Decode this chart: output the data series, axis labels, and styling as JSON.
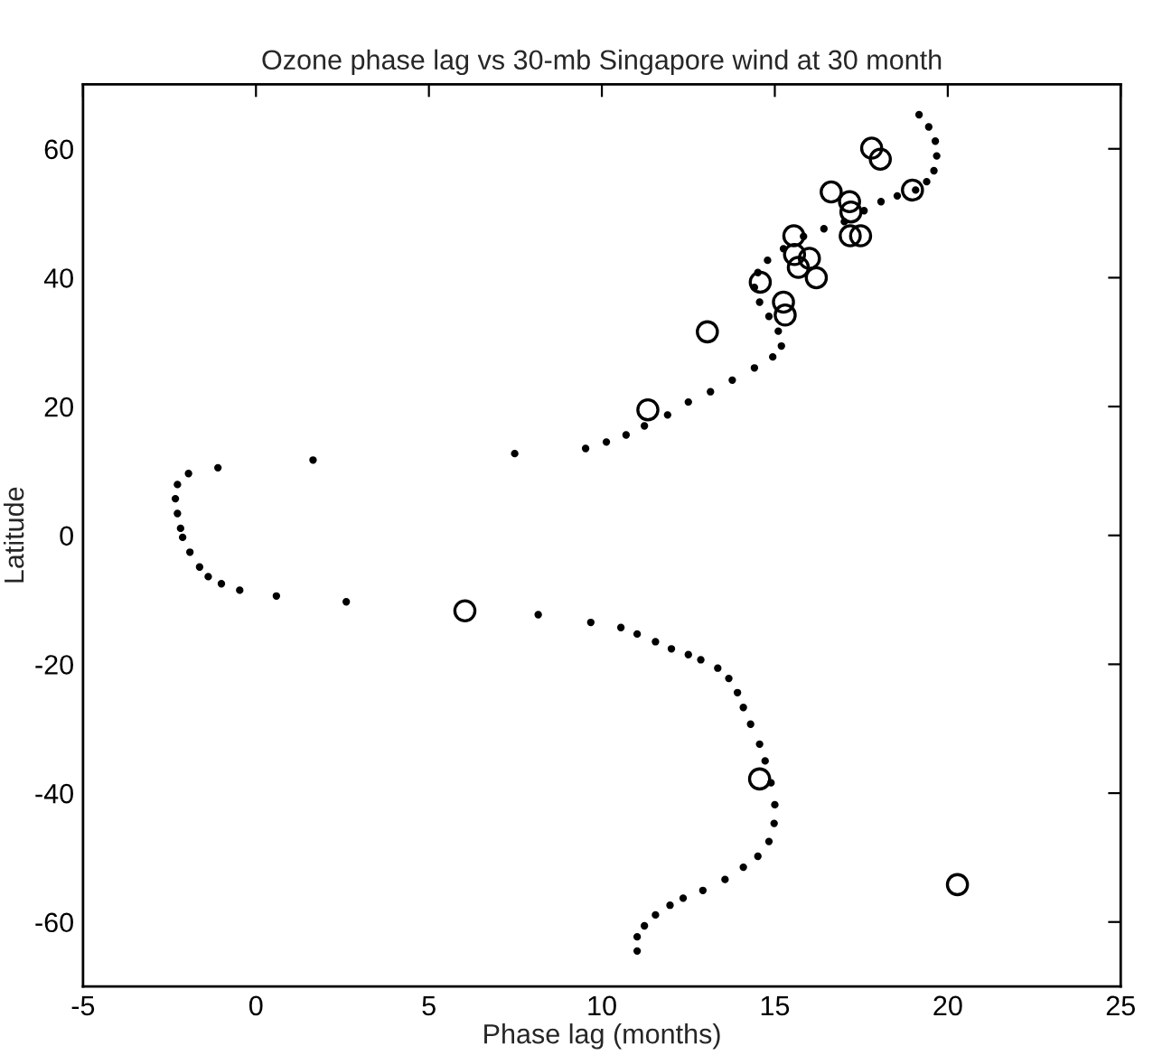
{
  "chart_data": {
    "type": "scatter",
    "title": "Ozone phase lag vs 30-mb Singapore wind at 30 month",
    "xlabel": "Phase lag (months)",
    "ylabel": "Latitude",
    "xlim": [
      -5,
      25
    ],
    "xticks": [
      -5,
      0,
      5,
      10,
      15,
      20,
      25
    ],
    "ylim": [
      -70,
      70
    ],
    "yticks": [
      -60,
      -40,
      -20,
      0,
      20,
      40,
      60
    ],
    "grid": false,
    "legend": false,
    "series": [
      {
        "color": "#000000",
        "marker": "point",
        "x": [
          19.17,
          19.45,
          19.64,
          19.68,
          19.6,
          19.39,
          19.07,
          18.54,
          18.07,
          17.58,
          17.01,
          16.42,
          15.83,
          15.25,
          14.79,
          14.51,
          14.41,
          14.56,
          14.83,
          15.1,
          15.19,
          14.94,
          14.41,
          13.77,
          13.14,
          12.5,
          11.9,
          11.23,
          10.7,
          10.13,
          9.53,
          7.48,
          1.65,
          -1.1,
          -1.95,
          -2.27,
          -2.33,
          -2.27,
          -2.18,
          -2.12,
          -1.91,
          -1.63,
          -1.38,
          -1.0,
          -0.47,
          0.59,
          2.61,
          8.16,
          9.68,
          10.55,
          11.02,
          11.55,
          12.01,
          12.5,
          12.86,
          13.35,
          13.67,
          13.92,
          14.09,
          14.3,
          14.56,
          14.72,
          14.89,
          15.0,
          14.98,
          14.83,
          14.51,
          14.09,
          13.56,
          12.92,
          12.35,
          11.97,
          11.55,
          11.23,
          11.02,
          11.02
        ],
        "values": [
          65.3,
          63.4,
          61.2,
          58.9,
          56.6,
          54.9,
          53.6,
          52.7,
          51.8,
          50.4,
          48.7,
          47.6,
          46.4,
          44.5,
          42.7,
          40.8,
          38.5,
          36.2,
          34.0,
          31.7,
          29.4,
          27.7,
          26.0,
          24.1,
          22.3,
          20.7,
          18.7,
          17.0,
          15.6,
          14.5,
          13.5,
          12.7,
          11.7,
          10.5,
          9.6,
          7.9,
          5.7,
          3.4,
          1.1,
          -0.3,
          -2.6,
          -4.9,
          -6.4,
          -7.5,
          -8.5,
          -9.4,
          -10.3,
          -12.3,
          -13.5,
          -14.3,
          -15.3,
          -16.5,
          -17.6,
          -18.5,
          -19.3,
          -20.6,
          -22.2,
          -24.4,
          -26.7,
          -29.3,
          -32.4,
          -35.0,
          -38.4,
          -41.8,
          -44.7,
          -47.5,
          -49.8,
          -51.5,
          -53.4,
          -55.1,
          -56.3,
          -57.4,
          -58.9,
          -60.6,
          -62.3,
          -64.5
        ]
      },
      {
        "color": "#000000",
        "marker": "circle",
        "x": [
          11.33,
          13.05,
          14.58,
          15.25,
          15.3,
          15.55,
          15.57,
          15.68,
          16.0,
          16.2,
          16.63,
          17.16,
          17.2,
          17.18,
          17.48,
          17.8,
          18.05,
          18.98,
          6.04,
          14.56,
          20.28
        ],
        "values": [
          19.5,
          31.6,
          39.3,
          36.2,
          34.2,
          46.5,
          43.6,
          41.6,
          43.0,
          40.0,
          53.3,
          51.8,
          50.2,
          46.5,
          46.5,
          60.1,
          58.4,
          53.6,
          -11.7,
          -37.8,
          -54.2
        ]
      }
    ]
  }
}
